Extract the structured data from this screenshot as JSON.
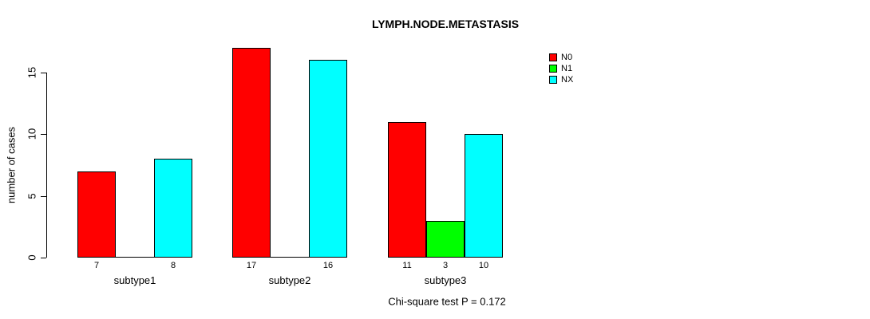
{
  "chart_data": {
    "type": "bar",
    "title": "LYMPH.NODE.METASTASIS",
    "ylabel": "number of cases",
    "xlabel": "",
    "annotation": "Chi-square test P = 0.172",
    "categories": [
      "subtype1",
      "subtype2",
      "subtype3"
    ],
    "series": [
      {
        "name": "N0",
        "color": "#ff0000",
        "values": [
          7,
          17,
          11
        ]
      },
      {
        "name": "N1",
        "color": "#00ff00",
        "values": [
          0,
          0,
          3
        ]
      },
      {
        "name": "NX",
        "color": "#00ffff",
        "values": [
          8,
          16,
          10
        ]
      }
    ],
    "bar_value_labels_shown_for_nonzero_only": true,
    "yticks": [
      0,
      5,
      10,
      15
    ],
    "ylim": [
      0,
      17.5
    ],
    "grid": false,
    "legend": {
      "position": "top-right-inside",
      "entries": [
        "N0",
        "N1",
        "NX"
      ]
    },
    "colors": {
      "axis": "#000000",
      "text": "#000000",
      "background": "#ffffff"
    }
  }
}
